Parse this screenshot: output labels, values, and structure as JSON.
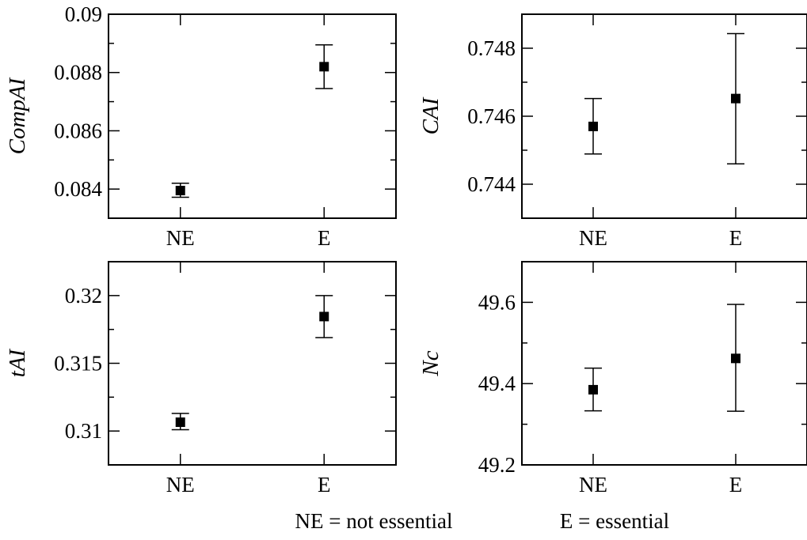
{
  "chart_data": [
    {
      "type": "scatter",
      "error_bars": true,
      "categories": [
        "NE",
        "E"
      ],
      "ylabel": "CompAI",
      "ylim": [
        0.083,
        0.09
      ],
      "yticks": [
        0.084,
        0.086,
        0.088,
        0.09
      ],
      "ytick_labels": [
        "0.084",
        "0.086",
        "0.088",
        "0.09"
      ],
      "series": [
        {
          "values": [
            0.08395,
            0.0882
          ],
          "err_low": [
            0.08372,
            0.08745
          ],
          "err_high": [
            0.0842,
            0.08895
          ]
        }
      ]
    },
    {
      "type": "scatter",
      "error_bars": true,
      "categories": [
        "NE",
        "E"
      ],
      "ylabel": "CAI",
      "ylim": [
        0.743,
        0.749
      ],
      "yticks": [
        0.744,
        0.746,
        0.748
      ],
      "ytick_labels": [
        "0.744",
        "0.746",
        "0.748"
      ],
      "series": [
        {
          "values": [
            0.7457,
            0.74652
          ],
          "err_low": [
            0.74489,
            0.7446
          ],
          "err_high": [
            0.74652,
            0.74843
          ]
        }
      ]
    },
    {
      "type": "scatter",
      "error_bars": true,
      "categories": [
        "NE",
        "E"
      ],
      "ylabel": "tAI",
      "ylim": [
        0.3075,
        0.3225
      ],
      "yticks": [
        0.31,
        0.315,
        0.32
      ],
      "ytick_labels": [
        "0.31",
        "0.315",
        "0.32"
      ],
      "series": [
        {
          "values": [
            0.31065,
            0.31845
          ],
          "err_low": [
            0.3101,
            0.3169
          ],
          "err_high": [
            0.3113,
            0.32
          ]
        }
      ]
    },
    {
      "type": "scatter",
      "error_bars": true,
      "categories": [
        "NE",
        "E"
      ],
      "ylabel": "Nc",
      "ylim": [
        49.2,
        49.7
      ],
      "yticks": [
        49.2,
        49.4,
        49.6
      ],
      "ytick_labels": [
        "49.2",
        "49.4",
        "49.6"
      ],
      "series": [
        {
          "values": [
            49.385,
            49.462
          ],
          "err_low": [
            49.333,
            49.332
          ],
          "err_high": [
            49.438,
            49.595
          ]
        }
      ]
    }
  ],
  "footnote": {
    "ne": "NE = not essential",
    "e": "E = essential"
  }
}
